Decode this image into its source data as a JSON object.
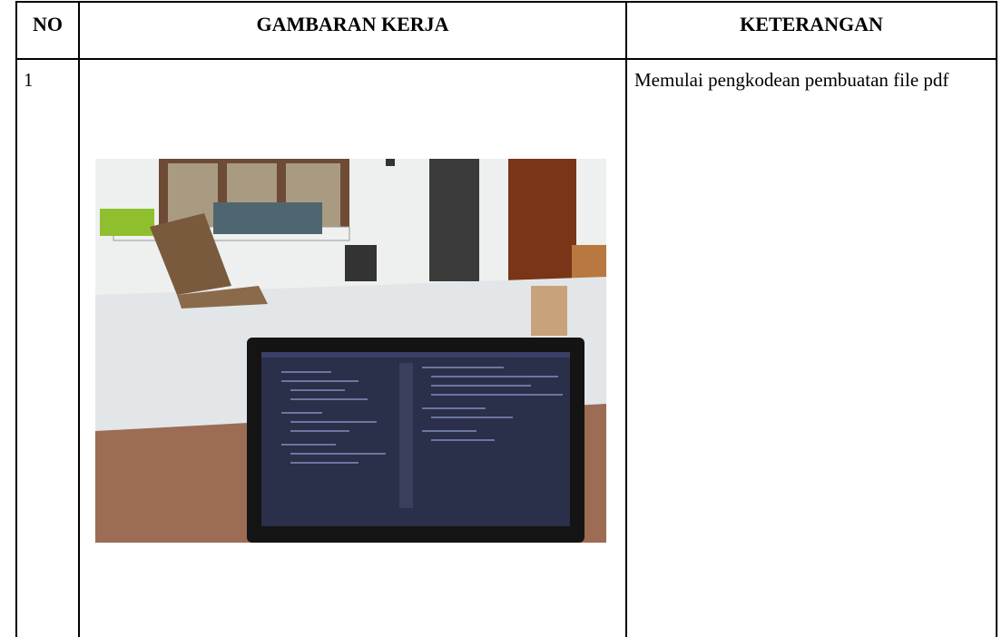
{
  "table": {
    "header": [
      "NO",
      "GAMBARAN KERJA",
      "KETERANGAN"
    ],
    "rows": [
      {
        "no": "1",
        "description": "Memulai pengkodean pembuatan file pdf"
      }
    ]
  }
}
